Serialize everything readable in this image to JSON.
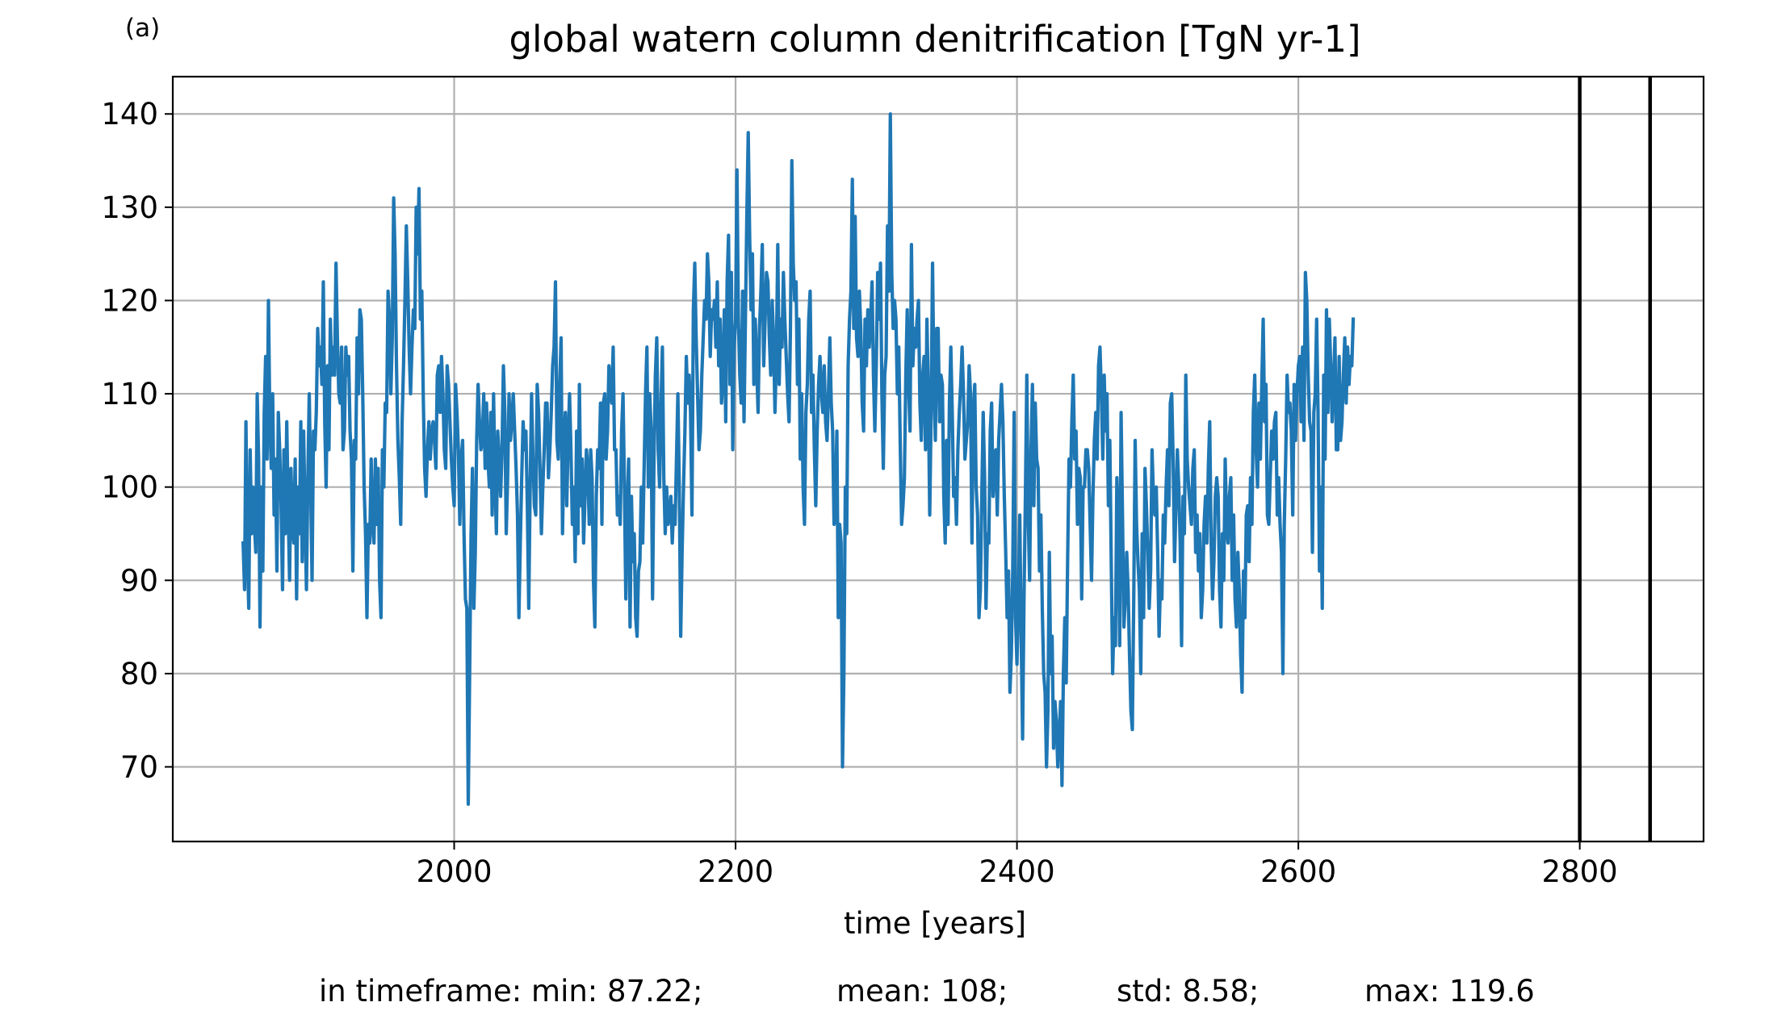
{
  "panel_label": "(a)",
  "colors": {
    "line": "#1f77b4",
    "grid": "#b0b0b0",
    "marker": "#000000"
  },
  "stats_text": {
    "min": "in timeframe: min: 87.22;",
    "mean": "mean: 108;",
    "std": "std: 8.58;",
    "max": "max: 119.6"
  },
  "chart_data": {
    "type": "line",
    "title": "global watern column denitrification [TgN yr-1]",
    "xlabel": "time [years]",
    "ylabel": "",
    "xlim": [
      1800,
      2888
    ],
    "ylim": [
      62,
      144
    ],
    "grid": true,
    "x_ticks": [
      2000,
      2200,
      2400,
      2600,
      2800
    ],
    "x_tick_labels": [
      "2000",
      "2200",
      "2400",
      "2600",
      "2800"
    ],
    "y_ticks": [
      70,
      80,
      90,
      100,
      110,
      120,
      130,
      140
    ],
    "y_tick_labels": [
      "70",
      "80",
      "90",
      "100",
      "110",
      "120",
      "130",
      "140"
    ],
    "vertical_lines": [
      2800,
      2850
    ],
    "series": [
      {
        "x_start": 1850,
        "x_step": 1,
        "values": [
          94,
          89,
          107,
          93,
          87,
          104,
          95,
          100,
          96,
          93,
          110,
          103,
          85,
          100,
          91,
          108,
          114,
          103,
          120,
          107,
          102,
          110,
          97,
          103,
          91,
          108,
          104,
          98,
          89,
          104,
          95,
          107,
          98,
          90,
          102,
          96,
          94,
          103,
          88,
          100,
          95,
          107,
          92,
          106,
          97,
          89,
          101,
          110,
          100,
          90,
          106,
          104,
          108,
          117,
          113,
          115,
          111,
          122,
          107,
          100,
          113,
          104,
          118,
          112,
          115,
          112,
          124,
          116,
          110,
          109,
          115,
          104,
          106,
          115,
          112,
          114,
          106,
          103,
          91,
          105,
          103,
          116,
          110,
          119,
          118,
          110,
          100,
          95,
          86,
          96,
          94,
          103,
          96,
          94,
          103,
          96,
          102,
          90,
          86,
          104,
          100,
          109,
          108,
          121,
          118,
          110,
          116,
          131,
          125,
          113,
          105,
          101,
          96,
          107,
          113,
          120,
          128,
          122,
          115,
          110,
          115,
          119,
          117,
          130,
          125,
          132,
          118,
          121,
          110,
          102,
          99,
          104,
          107,
          103,
          106,
          107,
          105,
          102,
          112,
          113,
          108,
          114,
          110,
          104,
          102,
          113,
          111,
          107,
          103,
          100,
          98,
          111,
          108,
          104,
          96,
          103,
          105,
          95,
          88,
          87,
          66,
          80,
          95,
          102,
          87,
          93,
          105,
          111,
          107,
          104,
          105,
          110,
          102,
          109,
          103,
          100,
          108,
          97,
          110,
          101,
          95,
          106,
          103,
          99,
          104,
          113,
          108,
          95,
          101,
          110,
          105,
          107,
          110,
          106,
          102,
          97,
          86,
          94,
          101,
          107,
          104,
          106,
          98,
          87,
          100,
          110,
          103,
          98,
          97,
          111,
          108,
          102,
          95,
          100,
          104,
          109,
          109,
          101,
          104,
          108,
          113,
          115,
          122,
          105,
          103,
          111,
          116,
          95,
          104,
          108,
          98,
          105,
          110,
          104,
          96,
          100,
          92,
          106,
          95,
          111,
          98,
          103,
          94,
          99,
          104,
          102,
          96,
          104,
          101,
          90,
          85,
          99,
          104,
          102,
          109,
          96,
          109,
          110,
          103,
          106,
          113,
          111,
          109,
          115,
          104,
          104,
          97,
          99,
          96,
          106,
          110,
          100,
          88,
          98,
          103,
          85,
          99,
          92,
          95,
          86,
          84,
          91,
          92,
          100,
          94,
          102,
          110,
          115,
          100,
          110,
          106,
          88,
          103,
          112,
          116,
          104,
          100,
          109,
          115,
          101,
          95,
          100,
          96,
          97,
          99,
          94,
          98,
          96,
          103,
          110,
          100,
          84,
          93,
          100,
          106,
          114,
          109,
          112,
          108,
          97,
          119,
          124,
          116,
          110,
          104,
          106,
          112,
          116,
          120,
          118,
          125,
          122,
          114,
          119,
          118,
          120,
          115,
          122,
          113,
          118,
          109,
          112,
          119,
          107,
          122,
          127,
          111,
          123,
          104,
          115,
          118,
          134,
          118,
          112,
          109,
          121,
          107,
          118,
          129,
          138,
          127,
          119,
          125,
          111,
          118,
          113,
          108,
          117,
          121,
          126,
          113,
          118,
          123,
          122,
          116,
          112,
          120,
          116,
          108,
          114,
          126,
          111,
          118,
          115,
          123,
          118,
          114,
          110,
          107,
          117,
          135,
          124,
          120,
          122,
          111,
          118,
          103,
          110,
          100,
          96,
          108,
          111,
          118,
          121,
          108,
          112,
          104,
          98,
          106,
          111,
          114,
          110,
          108,
          113,
          107,
          105,
          110,
          116,
          109,
          106,
          96,
          98,
          106,
          86,
          96,
          94,
          70,
          80,
          100,
          95,
          113,
          118,
          121,
          133,
          117,
          129,
          116,
          114,
          121,
          117,
          109,
          106,
          118,
          113,
          119,
          115,
          118,
          122,
          112,
          106,
          113,
          123,
          118,
          124,
          110,
          102,
          112,
          114,
          128,
          121,
          140,
          123,
          117,
          120,
          118,
          110,
          115,
          105,
          96,
          98,
          101,
          112,
          119,
          111,
          106,
          126,
          113,
          117,
          115,
          118,
          120,
          109,
          105,
          112,
          114,
          104,
          118,
          110,
          97,
          108,
          124,
          111,
          105,
          117,
          117,
          107,
          112,
          111,
          99,
          94,
          105,
          96,
          109,
          115,
          108,
          99,
          101,
          96,
          104,
          108,
          111,
          115,
          110,
          103,
          105,
          107,
          113,
          110,
          94,
          108,
          111,
          100,
          97,
          86,
          89,
          99,
          108,
          101,
          87,
          95,
          94,
          106,
          109,
          99,
          102,
          104,
          97,
          105,
          108,
          111,
          107,
          99,
          93,
          86,
          91,
          78,
          82,
          91,
          108,
          86,
          81,
          88,
          97,
          84,
          73,
          88,
          99,
          112,
          97,
          90,
          104,
          111,
          98,
          109,
          103,
          102,
          91,
          97,
          87,
          80,
          78,
          70,
          76,
          93,
          80,
          84,
          72,
          77,
          75,
          70,
          73,
          77,
          68,
          80,
          86,
          79,
          92,
          103,
          100,
          107,
          112,
          103,
          106,
          96,
          102,
          101,
          88,
          100,
          100,
          104,
          104,
          102,
          96,
          90,
          99,
          105,
          108,
          103,
          113,
          115,
          110,
          103,
          112,
          106,
          110,
          98,
          105,
          92,
          80,
          86,
          83,
          101,
          96,
          83,
          108,
          97,
          85,
          88,
          93,
          89,
          82,
          76,
          74,
          88,
          105,
          96,
          92,
          89,
          80,
          95,
          86,
          102,
          98,
          93,
          87,
          91,
          104,
          99,
          97,
          100,
          93,
          84,
          90,
          88,
          97,
          94,
          100,
          104,
          98,
          109,
          110,
          103,
          92,
          98,
          104,
          100,
          94,
          83,
          99,
          95,
          112,
          103,
          100,
          98,
          96,
          102,
          104,
          93,
          97,
          91,
          95,
          86,
          89,
          96,
          99,
          94,
          102,
          107,
          94,
          88,
          92,
          99,
          101,
          99,
          89,
          85,
          95,
          90,
          103,
          96,
          94,
          99,
          101,
          90,
          97,
          88,
          85,
          93,
          89,
          82,
          78,
          91,
          86,
          97,
          98,
          92,
          101,
          96,
          108,
          112,
          104,
          100,
          109,
          103,
          111,
          118,
          107,
          111,
          97,
          96,
          101,
          106,
          103,
          107,
          108,
          97,
          101,
          96,
          93,
          80,
          96,
          103,
          112,
          108,
          109,
          106,
          97,
          111,
          105,
          110,
          113,
          114,
          107,
          115,
          105,
          123,
          120,
          112,
          107,
          106,
          93,
          108,
          110,
          118,
          108,
          91,
          100,
          87,
          112,
          103,
          119,
          108,
          118,
          113,
          107,
          111,
          116,
          104,
          104,
          114,
          105,
          107,
          112,
          116,
          109,
          115,
          111,
          114,
          113,
          118
        ]
      }
    ]
  }
}
